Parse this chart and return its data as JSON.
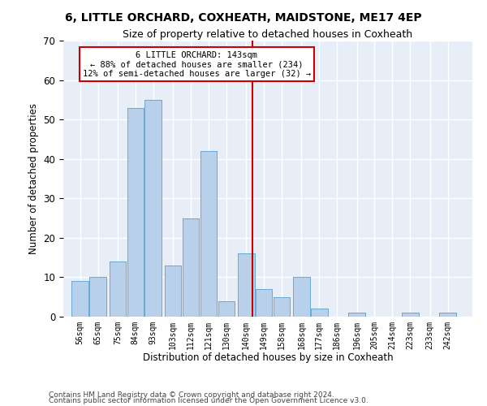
{
  "title": "6, LITTLE ORCHARD, COXHEATH, MAIDSTONE, ME17 4EP",
  "subtitle": "Size of property relative to detached houses in Coxheath",
  "xlabel": "Distribution of detached houses by size in Coxheath",
  "ylabel": "Number of detached properties",
  "bar_color": "#b8d0ea",
  "bar_edge_color": "#6aaad4",
  "background_color": "#e8eef8",
  "grid_color": "#ffffff",
  "bin_centers": [
    56,
    65,
    75,
    84,
    93,
    103,
    112,
    121,
    130,
    140,
    149,
    158,
    168,
    177,
    186,
    196,
    205,
    214,
    223,
    233,
    242
  ],
  "bin_labels": [
    "56sqm",
    "65sqm",
    "75sqm",
    "84sqm",
    "93sqm",
    "103sqm",
    "112sqm",
    "121sqm",
    "130sqm",
    "140sqm",
    "149sqm",
    "158sqm",
    "168sqm",
    "177sqm",
    "186sqm",
    "196sqm",
    "205sqm",
    "214sqm",
    "223sqm",
    "233sqm",
    "242sqm"
  ],
  "values": [
    9,
    10,
    14,
    53,
    55,
    13,
    25,
    42,
    4,
    16,
    7,
    5,
    10,
    2,
    0,
    1,
    0,
    0,
    1,
    0,
    1
  ],
  "property_size": 143,
  "vline_color": "#cc0000",
  "annotation_line1": "6 LITTLE ORCHARD: 143sqm",
  "annotation_line2": "← 88% of detached houses are smaller (234)",
  "annotation_line3": "12% of semi-detached houses are larger (32) →",
  "annotation_box_color": "#cc0000",
  "annotation_box_fill": "#ffffff",
  "ylim": [
    0,
    70
  ],
  "yticks": [
    0,
    10,
    20,
    30,
    40,
    50,
    60,
    70
  ],
  "footer_line1": "Contains HM Land Registry data © Crown copyright and database right 2024.",
  "footer_line2": "Contains public sector information licensed under the Open Government Licence v3.0."
}
